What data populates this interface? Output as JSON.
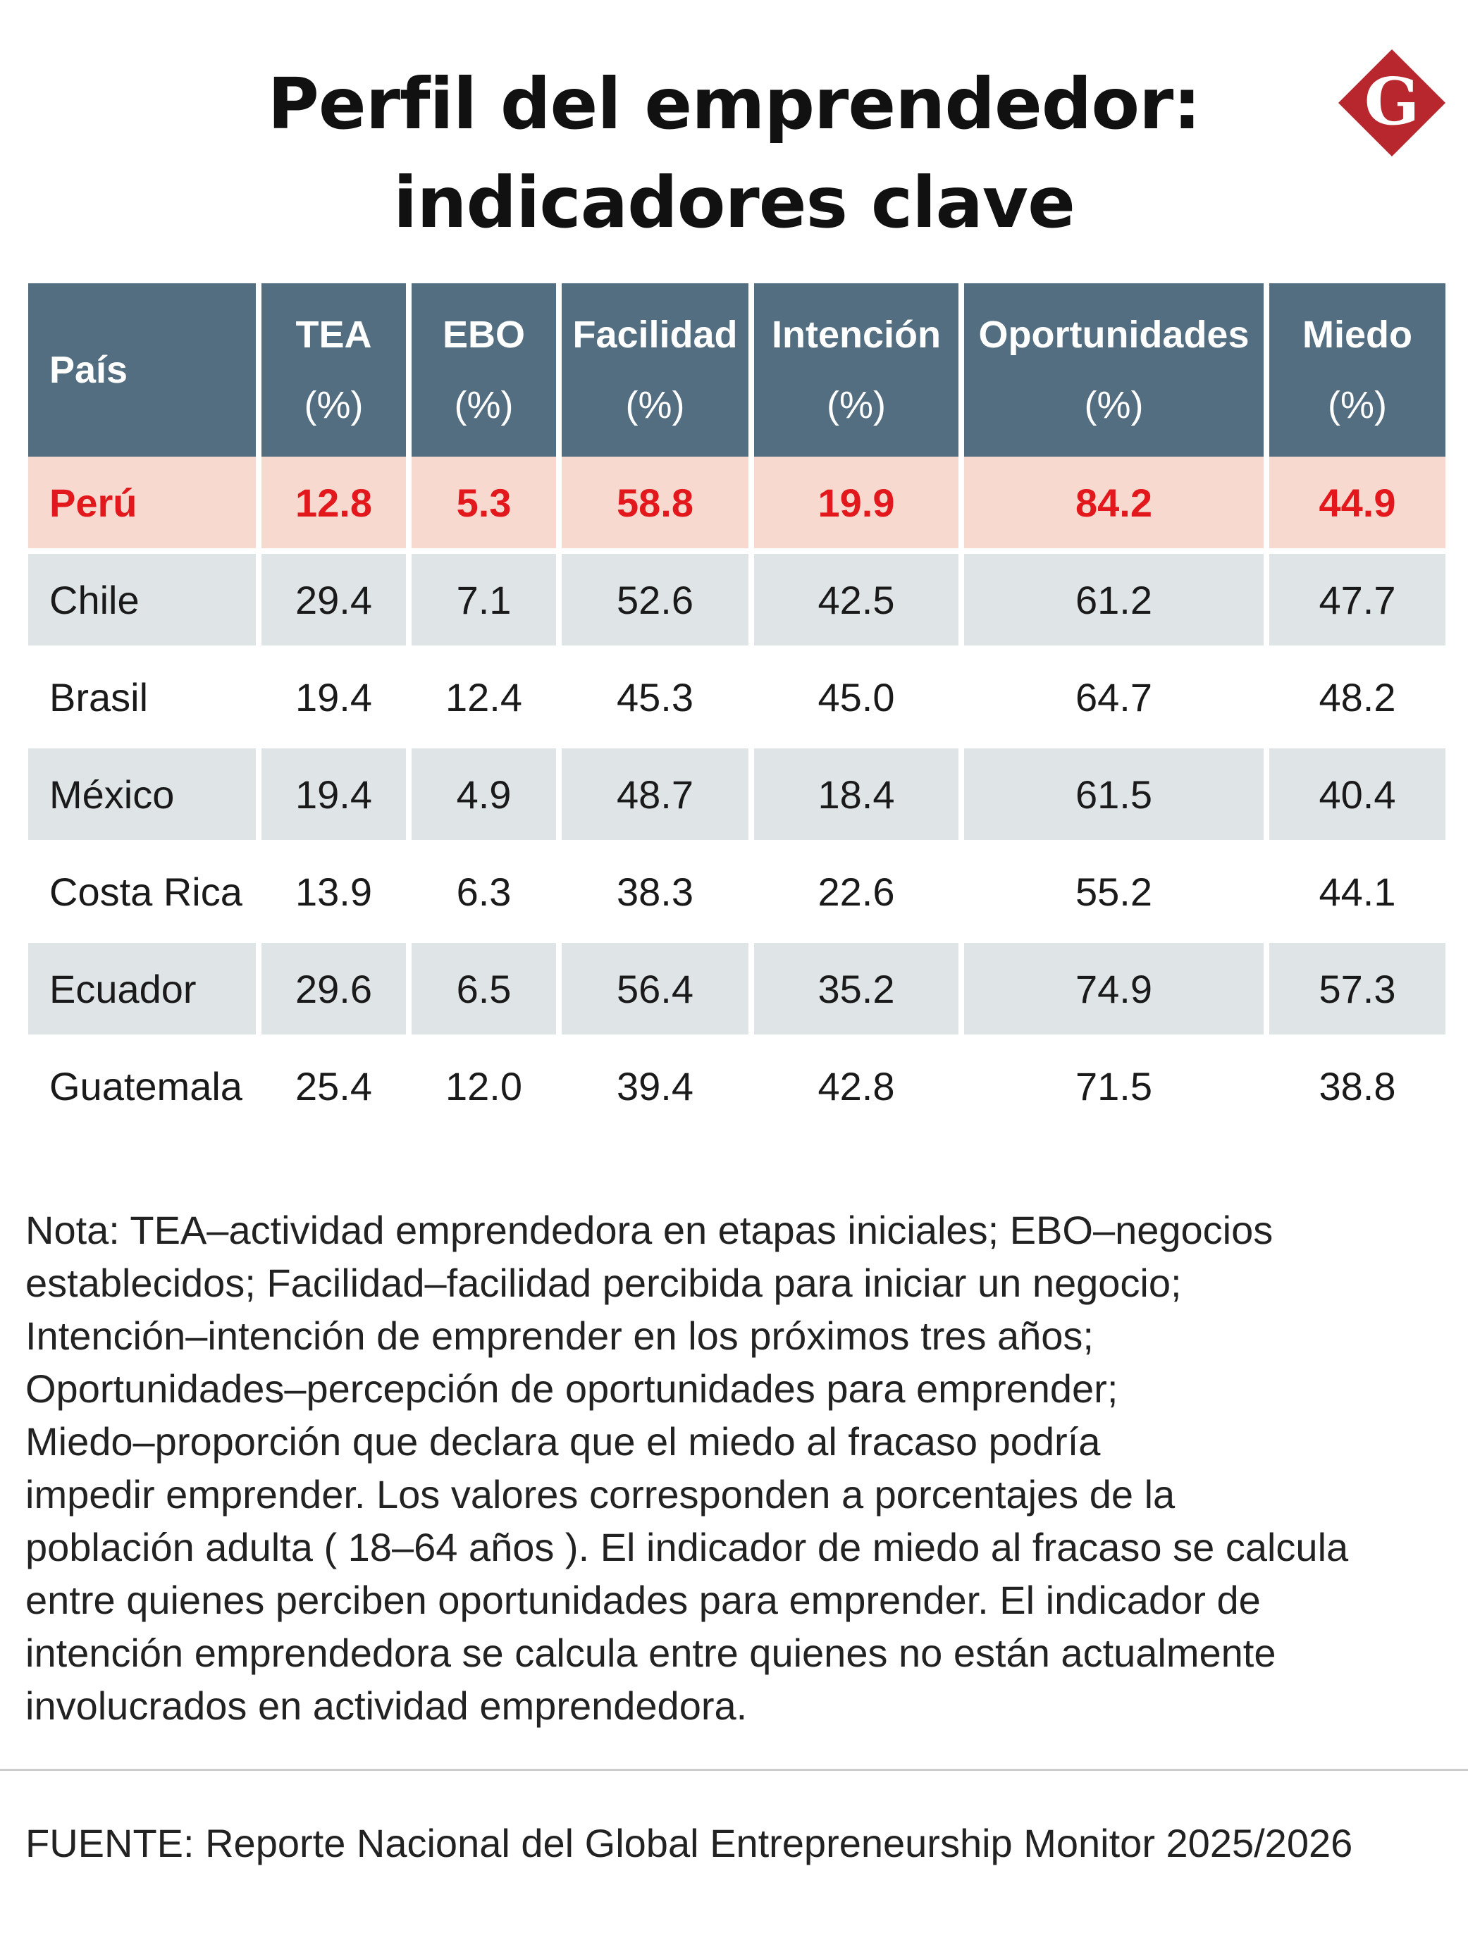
{
  "title_line1": "Perfil del emprendedor:",
  "title_line2": "indicadores clave",
  "logo": {
    "letter": "G",
    "color": "#b7272d",
    "icon": "g-diamond-logo-icon"
  },
  "colors": {
    "header_bg": "#536d81",
    "highlight_bg": "#f8d9d0",
    "highlight_text": "#e3181c",
    "stripe_bg": "#dfe4e7"
  },
  "chart_data": {
    "type": "table",
    "columns": [
      {
        "label": "País",
        "unit": ""
      },
      {
        "label": "TEA",
        "unit": "(%)"
      },
      {
        "label": "EBO",
        "unit": "(%)"
      },
      {
        "label": "Facilidad",
        "unit": "(%)"
      },
      {
        "label": "Intención",
        "unit": "(%)"
      },
      {
        "label": "Oportunidades",
        "unit": "(%)"
      },
      {
        "label": "Miedo",
        "unit": "(%)"
      }
    ],
    "rows": [
      {
        "country": "Perú",
        "values": [
          "12.8",
          "5.3",
          "58.8",
          "19.9",
          "84.2",
          "44.9"
        ],
        "highlight": true
      },
      {
        "country": "Chile",
        "values": [
          "29.4",
          "7.1",
          "52.6",
          "42.5",
          "61.2",
          "47.7"
        ]
      },
      {
        "country": "Brasil",
        "values": [
          "19.4",
          "12.4",
          "45.3",
          "45.0",
          "64.7",
          "48.2"
        ]
      },
      {
        "country": "México",
        "values": [
          "19.4",
          "4.9",
          "48.7",
          "18.4",
          "61.5",
          "40.4"
        ]
      },
      {
        "country": "Costa Rica",
        "values": [
          "13.9",
          "6.3",
          "38.3",
          "22.6",
          "55.2",
          "44.1"
        ]
      },
      {
        "country": "Ecuador",
        "values": [
          "29.6",
          "6.5",
          "56.4",
          "35.2",
          "74.9",
          "57.3"
        ]
      },
      {
        "country": "Guatemala",
        "values": [
          "25.4",
          "12.0",
          "39.4",
          "42.8",
          "71.5",
          "38.8"
        ]
      }
    ]
  },
  "note_lines": [
    "Nota: TEA–actividad emprendedora en etapas iniciales; EBO–negocios",
    "establecidos; Facilidad–facilidad percibida para iniciar un negocio;",
    "Intención–intención de emprender en los próximos tres años;",
    "Oportunidades–percepción de oportunidades para emprender;",
    "Miedo–proporción que declara que el miedo al fracaso podría",
    "impedir emprender. Los valores corresponden a porcentajes de la",
    "población adulta ( 18–64 años ). El indicador de miedo al fracaso se calcula",
    "entre quienes perciben oportunidades para emprender. El indicador de",
    "intención emprendedora se calcula entre quienes no están actualmente",
    "involucrados en actividad emprendedora."
  ],
  "source": "FUENTE: Reporte Nacional del Global Entrepreneurship Monitor 2025/2026"
}
